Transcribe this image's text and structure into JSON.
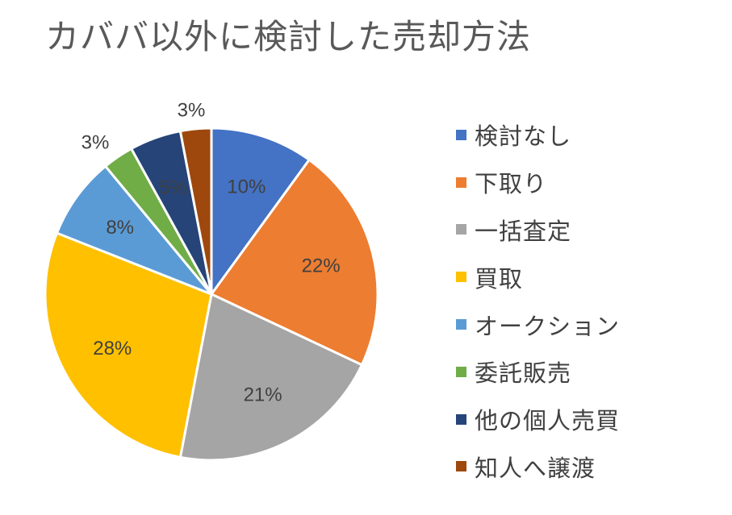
{
  "chart_data": {
    "type": "pie",
    "title": "カババ以外に検討した売却方法",
    "categories": [
      "検討なし",
      "下取り",
      "一括査定",
      "買取",
      "オークション",
      "委託販売",
      "他の個人売買",
      "知人へ譲渡"
    ],
    "values": [
      10,
      22,
      21,
      28,
      8,
      3,
      5,
      3
    ],
    "labels": [
      "10%",
      "22%",
      "21%",
      "28%",
      "8%",
      "3%",
      "5%",
      "3%"
    ],
    "colors": [
      "#4472C4",
      "#ED7D31",
      "#A5A5A5",
      "#FFC000",
      "#5B9BD5",
      "#70AD47",
      "#264478",
      "#9E480E"
    ],
    "label_colors": [
      "#404040",
      "#404040",
      "#404040",
      "#404040",
      "#404040",
      "#404040",
      "#404040",
      "#404040"
    ],
    "legend_position": "right"
  }
}
